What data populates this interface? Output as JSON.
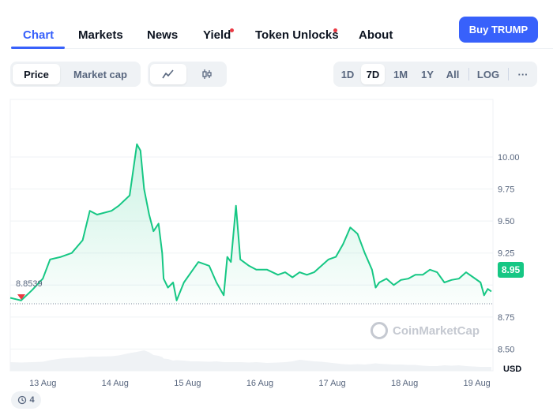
{
  "tabs": [
    "Chart",
    "Markets",
    "News",
    "Yield",
    "Token Unlocks",
    "About"
  ],
  "buy_button": "Buy TRUMP",
  "view_toggle": [
    "Price",
    "Market cap"
  ],
  "range_buttons": [
    "1D",
    "7D",
    "1M",
    "1Y",
    "All",
    "LOG"
  ],
  "more_label": "···",
  "current_price": "8.95",
  "start_price": "8.8539",
  "currency": "USD",
  "watermark": "CoinMarketCap",
  "history_count": "4",
  "colors": {
    "accent": "#3861fb",
    "up": "#16c784",
    "down": "#ea3943"
  },
  "chart_data": {
    "type": "area",
    "currency": "USD",
    "ylim": [
      8.33,
      10.45
    ],
    "yticks": [
      8.5,
      8.75,
      9.0,
      9.25,
      9.5,
      9.75,
      10.0
    ],
    "ytick_labels": [
      "8.50",
      "8.75",
      "",
      "9.25",
      "9.50",
      "9.75",
      "10.00"
    ],
    "xtick_labels": [
      "13 Aug",
      "14 Aug",
      "15 Aug",
      "16 Aug",
      "17 Aug",
      "18 Aug",
      "19 Aug"
    ],
    "reference_line": 8.8539,
    "series": [
      {
        "x": [
          0,
          0.15,
          0.3,
          0.45,
          0.55,
          0.7,
          0.85,
          1.0,
          1.1,
          1.2,
          1.4,
          1.5,
          1.65,
          1.75,
          1.8,
          1.85,
          1.92,
          1.98,
          2.05,
          2.1,
          2.12,
          2.18,
          2.25,
          2.3,
          2.4,
          2.5,
          2.6,
          2.75,
          2.85,
          2.95,
          3.0,
          3.05,
          3.12,
          3.18,
          3.3,
          3.4,
          3.55,
          3.7,
          3.8,
          3.9,
          4.0,
          4.1,
          4.2,
          4.3,
          4.4,
          4.5,
          4.6,
          4.7,
          4.8,
          4.9,
          5.0,
          5.05,
          5.1,
          5.2,
          5.3,
          5.4,
          5.5,
          5.6,
          5.7,
          5.8,
          5.9,
          6.0,
          6.1,
          6.2,
          6.3,
          6.4,
          6.5,
          6.55,
          6.6,
          6.65
        ],
        "values": [
          8.9,
          8.88,
          8.96,
          9.05,
          9.2,
          9.22,
          9.25,
          9.35,
          9.58,
          9.55,
          9.58,
          9.62,
          9.7,
          10.1,
          10.05,
          9.75,
          9.55,
          9.42,
          9.48,
          9.25,
          9.05,
          8.98,
          9.02,
          8.88,
          9.02,
          9.1,
          9.18,
          9.15,
          9.02,
          8.92,
          9.22,
          9.18,
          9.62,
          9.2,
          9.15,
          9.12,
          9.12,
          9.08,
          9.1,
          9.06,
          9.1,
          9.08,
          9.1,
          9.15,
          9.2,
          9.22,
          9.32,
          9.45,
          9.4,
          9.25,
          9.12,
          8.98,
          9.02,
          9.05,
          9.0,
          9.04,
          9.05,
          9.08,
          9.08,
          9.12,
          9.1,
          9.02,
          9.04,
          9.05,
          9.1,
          9.06,
          9.02,
          8.92,
          8.97,
          8.95
        ]
      }
    ],
    "volume": [
      0.22,
      0.21,
      0.22,
      0.23,
      0.27,
      0.31,
      0.33,
      0.34,
      0.36,
      0.36,
      0.37,
      0.39,
      0.45,
      0.48,
      0.5,
      0.52,
      0.47,
      0.4,
      0.38,
      0.35,
      0.31,
      0.3,
      0.26,
      0.27,
      0.26,
      0.24,
      0.24,
      0.23,
      0.24,
      0.22,
      0.22,
      0.22,
      0.22,
      0.22,
      0.21,
      0.22,
      0.2,
      0.21,
      0.22,
      0.24,
      0.28,
      0.26,
      0.24,
      0.23,
      0.21,
      0.19,
      0.17,
      0.16,
      0.17,
      0.16,
      0.18,
      0.19,
      0.18,
      0.17,
      0.16,
      0.16,
      0.15,
      0.15,
      0.13,
      0.12,
      0.12,
      0.14,
      0.13,
      0.14,
      0.12,
      0.11,
      0.1,
      0.1,
      0.1,
      0.1
    ]
  }
}
